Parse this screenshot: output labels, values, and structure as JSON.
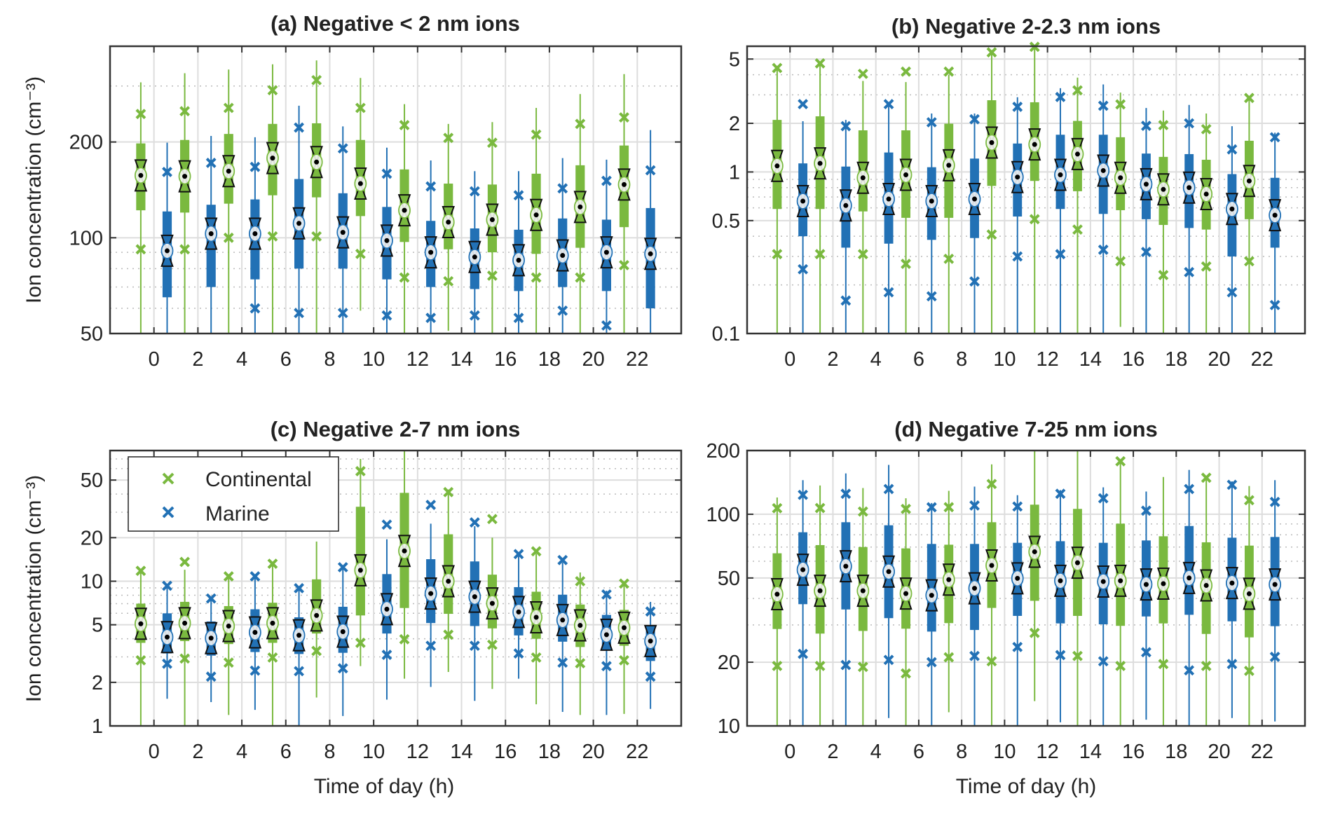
{
  "colors": {
    "continental": "#7ab93f",
    "marine": "#2271b5"
  },
  "legend": {
    "items": [
      "Continental",
      "Marine"
    ],
    "placement": "top-left of panel (c)"
  },
  "chart_data": [
    {
      "type": "box",
      "title": "(a) Negative < 2 nm ions",
      "ylabel": "Ion concentration (cm⁻³)",
      "xlabel": "",
      "yscale": "log",
      "ylim": [
        50,
        400
      ],
      "yticks": [
        50,
        100,
        200
      ],
      "xlim": [
        -2,
        24
      ],
      "xticks": [
        0,
        2,
        4,
        6,
        8,
        10,
        12,
        14,
        16,
        18,
        20,
        22
      ],
      "grid": true,
      "series": [
        {
          "name": "Continental",
          "whisker_low": [
            50,
            50,
            50,
            50,
            50,
            59,
            50,
            51,
            50,
            50,
            50,
            50
          ],
          "outlier_low": [
            92,
            92,
            100,
            101,
            101,
            89,
            75,
            73,
            76,
            75,
            75,
            82
          ],
          "q1": [
            122,
            120,
            128,
            136,
            134,
            117,
            97,
            92,
            90,
            89,
            93,
            108
          ],
          "median": [
            157,
            156,
            162,
            178,
            173,
            148,
            122,
            112,
            114,
            118,
            125,
            147
          ],
          "q3": [
            198,
            203,
            212,
            228,
            229,
            203,
            164,
            148,
            147,
            159,
            169,
            195
          ],
          "outlier_high": [
            245,
            250,
            256,
            291,
            313,
            256,
            226,
            206,
            199,
            211,
            228,
            239
          ],
          "whisker_high": [
            308,
            329,
            338,
            351,
            361,
            318,
            263,
            228,
            231,
            256,
            283,
            327
          ]
        },
        {
          "name": "Marine",
          "whisker_low": [
            50,
            50,
            50,
            50,
            50,
            50,
            50,
            50,
            50,
            50,
            50,
            50
          ],
          "outlier_low": [
            null,
            null,
            60,
            58,
            58,
            57,
            56,
            57,
            56,
            59,
            53,
            null
          ],
          "q1": [
            65,
            70,
            74,
            80,
            80,
            74,
            70,
            69,
            68,
            70,
            68,
            60
          ],
          "median": [
            91,
            103,
            103,
            111,
            104,
            98,
            90,
            87,
            85,
            88,
            90,
            89
          ],
          "q3": [
            121,
            127,
            132,
            153,
            138,
            125,
            113,
            107,
            106,
            115,
            114,
            124
          ],
          "outlier_high": [
            161,
            172,
            167,
            222,
            191,
            159,
            145,
            140,
            136,
            143,
            151,
            163
          ],
          "whisker_high": [
            199,
            209,
            207,
            260,
            224,
            192,
            175,
            162,
            162,
            178,
            176,
            218
          ]
        }
      ]
    },
    {
      "type": "box",
      "title": "(b) Negative 2-2.3 nm ions",
      "ylabel": "",
      "xlabel": "",
      "yscale": "log",
      "ylim": [
        0.1,
        6
      ],
      "yticks": [
        0.1,
        0.5,
        1,
        2,
        5
      ],
      "xlim": [
        -2,
        24
      ],
      "xticks": [
        0,
        2,
        4,
        6,
        8,
        10,
        12,
        14,
        16,
        18,
        20,
        22
      ],
      "grid": true,
      "series": [
        {
          "name": "Continental",
          "whisker_low": [
            0.1,
            0.1,
            0.1,
            0.1,
            0.1,
            0.1,
            0.1,
            0.1,
            0.11,
            0.1,
            0.1,
            0.1
          ],
          "outlier_low": [
            0.31,
            0.31,
            0.31,
            0.27,
            0.29,
            0.41,
            0.51,
            0.44,
            0.28,
            0.23,
            0.26,
            0.28
          ],
          "q1": [
            0.59,
            0.59,
            0.57,
            0.52,
            0.52,
            0.82,
            0.88,
            0.76,
            0.58,
            0.47,
            0.44,
            0.51
          ],
          "median": [
            1.09,
            1.13,
            0.92,
            0.96,
            1.1,
            1.52,
            1.48,
            1.29,
            0.92,
            0.78,
            0.73,
            0.88
          ],
          "q3": [
            2.1,
            2.21,
            1.81,
            1.81,
            1.99,
            2.78,
            2.7,
            2.07,
            1.64,
            1.24,
            1.19,
            1.56
          ],
          "outlier_high": [
            4.4,
            4.7,
            4.05,
            4.18,
            4.18,
            5.5,
            5.95,
            3.2,
            2.62,
            1.95,
            1.84,
            2.87
          ],
          "whisker_high": [
            4.3,
            4.6,
            3.66,
            3.6,
            4.0,
            5.6,
            5.8,
            3.84,
            3.1,
            2.4,
            2.3,
            2.9
          ]
        },
        {
          "name": "Marine",
          "whisker_low": [
            0.1,
            0.1,
            0.1,
            0.1,
            0.1,
            0.1,
            0.1,
            0.1,
            0.1,
            0.1,
            0.1,
            0.1
          ],
          "outlier_low": [
            0.25,
            0.16,
            0.18,
            0.17,
            0.21,
            0.3,
            0.31,
            0.33,
            0.32,
            0.24,
            0.18,
            0.15
          ],
          "q1": [
            0.4,
            0.34,
            0.36,
            0.38,
            0.39,
            0.53,
            0.59,
            0.55,
            0.51,
            0.45,
            0.3,
            0.34
          ],
          "median": [
            0.66,
            0.62,
            0.68,
            0.66,
            0.68,
            0.93,
            0.96,
            1.02,
            0.84,
            0.8,
            0.59,
            0.54
          ],
          "q3": [
            1.13,
            1.08,
            1.32,
            1.07,
            1.21,
            1.5,
            1.7,
            1.7,
            1.3,
            1.29,
            0.97,
            0.92
          ],
          "outlier_high": [
            2.63,
            1.92,
            2.63,
            2.03,
            2.12,
            2.53,
            2.91,
            2.57,
            1.93,
            2.0,
            1.38,
            1.64
          ],
          "whisker_high": [
            2.06,
            2.1,
            2.7,
            2.3,
            2.3,
            2.9,
            3.3,
            3.48,
            2.49,
            2.6,
            1.92,
            1.75
          ]
        }
      ]
    },
    {
      "type": "box",
      "title": "(c) Negative 2-7 nm ions",
      "ylabel": "Ion concentration (cm⁻³)",
      "xlabel": "Time of day (h)",
      "yscale": "log",
      "ylim": [
        1,
        80
      ],
      "yticks": [
        1,
        2,
        5,
        10,
        20,
        50
      ],
      "xlim": [
        -2,
        24
      ],
      "xticks": [
        0,
        2,
        4,
        6,
        8,
        10,
        12,
        14,
        16,
        18,
        20,
        22
      ],
      "grid": true,
      "series": [
        {
          "name": "Continental",
          "whisker_low": [
            1,
            1,
            1.19,
            1,
            1.57,
            2.59,
            2.12,
            2.36,
            1.8,
            1.41,
            1.19,
            1.21
          ],
          "outlier_low": [
            2.84,
            2.92,
            2.74,
            2.97,
            3.3,
            3.75,
            3.97,
            4.27,
            3.64,
            2.97,
            2.71,
            2.84
          ],
          "q1": [
            3.75,
            3.86,
            3.68,
            3.75,
            4.35,
            5.8,
            6.53,
            5.95,
            4.72,
            4.0,
            3.51,
            3.58
          ],
          "median": [
            5.08,
            5.13,
            4.9,
            5.13,
            5.8,
            11.9,
            16.2,
            10,
            7.03,
            5.63,
            4.95,
            4.77
          ],
          "q3": [
            7.0,
            7.2,
            6.73,
            7.1,
            10.3,
            32.7,
            40.8,
            21.1,
            11.1,
            8.46,
            6.9,
            6.34
          ],
          "outlier_high": [
            11.8,
            13.6,
            10.8,
            13.2,
            null,
            57.6,
            null,
            41.3,
            26.9,
            16.1,
            10,
            9.63
          ],
          "whisker_high": [
            11.5,
            12.0,
            10.5,
            12.8,
            18.8,
            70,
            80,
            43,
            20,
            15.5,
            11.5,
            9.5
          ]
        },
        {
          "name": "Marine",
          "whisker_low": [
            1.54,
            1.46,
            1.29,
            1.0,
            1.17,
            1.52,
            1.86,
            1.49,
            2.12,
            1.25,
            1.19,
            1.31
          ],
          "outlier_low": [
            2.69,
            2.19,
            2.41,
            2.39,
            2.5,
            3.1,
            3.58,
            3.58,
            3.17,
            2.74,
            2.59,
            2.19
          ],
          "q1": [
            3.17,
            3.06,
            3.24,
            3.14,
            3.2,
            4.35,
            5.14,
            4.9,
            4.22,
            3.82,
            3.33,
            2.81
          ],
          "median": [
            4.11,
            4.04,
            4.43,
            4.23,
            4.48,
            6.41,
            8.22,
            7.81,
            6.13,
            5.39,
            4.27,
            3.86
          ],
          "q3": [
            6.0,
            5.27,
            6.4,
            5.63,
            6.66,
            11.2,
            14.2,
            13.7,
            9.1,
            8.07,
            5.85,
            4.92
          ],
          "outlier_high": [
            9.3,
            7.6,
            10.8,
            8.95,
            12.5,
            24.6,
            33.7,
            25.5,
            15.4,
            14.0,
            8.1,
            6.18
          ],
          "whisker_high": [
            9.0,
            7.4,
            10.5,
            8.7,
            12.2,
            19.5,
            25,
            24,
            15,
            13.5,
            8.6,
            7.2
          ]
        }
      ]
    },
    {
      "type": "box",
      "title": "(d) Negative 7-25 nm ions",
      "ylabel": "",
      "xlabel": "Time of day (h)",
      "yscale": "log",
      "ylim": [
        10,
        200
      ],
      "yticks": [
        10,
        20,
        50,
        100,
        200
      ],
      "xlim": [
        -2,
        24
      ],
      "xticks": [
        0,
        2,
        4,
        6,
        8,
        10,
        12,
        14,
        16,
        18,
        20,
        22
      ],
      "grid": true,
      "series": [
        {
          "name": "Continental",
          "whisker_low": [
            10,
            10,
            10,
            10,
            11.6,
            10,
            13.1,
            10,
            10,
            10,
            10,
            10
          ],
          "outlier_low": [
            19.2,
            19.2,
            19.0,
            17.7,
            21.1,
            20.2,
            27.5,
            21.4,
            19.2,
            19.6,
            19.2,
            18.2
          ],
          "q1": [
            28.7,
            27.3,
            28.1,
            28.8,
            30.6,
            36.1,
            39.0,
            33.1,
            29.7,
            30.5,
            27.2,
            26.2
          ],
          "median": [
            41.9,
            43.5,
            43.5,
            42.2,
            49.1,
            57.3,
            66.5,
            59.0,
            48.5,
            47.0,
            46.1,
            42.1
          ],
          "q3": [
            65.4,
            71.5,
            70,
            69,
            71.8,
            91.7,
            111,
            106,
            90.3,
            78.7,
            73.7,
            71.1
          ],
          "outlier_high": [
            106.8,
            107,
            103,
            106,
            108,
            139,
            null,
            null,
            178,
            null,
            148.8,
            116.5
          ],
          "whisker_high": [
            120,
            136.8,
            133,
            119,
            129,
            172,
            200,
            200,
            180,
            150,
            150,
            136
          ]
        },
        {
          "name": "Marine",
          "whisker_low": [
            10,
            10,
            10.9,
            10,
            10,
            10,
            10.4,
            10,
            10.7,
            10,
            10.9,
            10.5
          ],
          "outlier_low": [
            21.9,
            19.4,
            20.5,
            20.0,
            21.4,
            23.6,
            21.6,
            20.2,
            22.3,
            18.3,
            19.6,
            21.2
          ],
          "q1": [
            37.6,
            35.5,
            32.3,
            27.9,
            28.4,
            33.1,
            30.5,
            30.2,
            32.9,
            33.5,
            31.2,
            29.6
          ],
          "median": [
            54.7,
            56.8,
            53.6,
            41.4,
            44.7,
            49.8,
            48.5,
            48.1,
            46.6,
            50,
            47.3,
            46.6
          ],
          "q3": [
            82.2,
            91.7,
            88.7,
            72.4,
            72.4,
            73.3,
            74.6,
            73.3,
            75.2,
            88,
            77.5,
            78.1
          ],
          "outlier_high": [
            123.5,
            125,
            131.6,
            107.9,
            110,
            108.8,
            125,
            119,
            104,
            131.6,
            137.8,
            114.4
          ],
          "whisker_high": [
            145,
            156,
            171,
            113,
            135,
            123,
            130,
            134,
            128,
            162,
            143,
            145
          ]
        }
      ]
    }
  ]
}
